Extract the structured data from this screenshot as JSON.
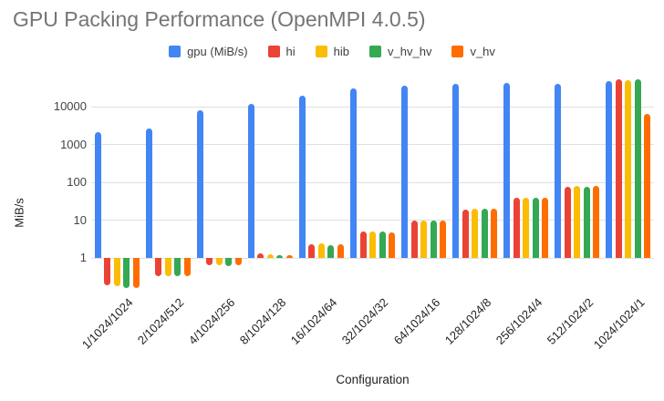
{
  "title": "GPU Packing Performance (OpenMPI 4.0.5)",
  "colors": {
    "title_text": "#757575",
    "axis_text": "#222222",
    "tick_text": "#444444",
    "gridline": "#e0e0e0"
  },
  "chart_data": {
    "type": "bar",
    "title": "GPU Packing Performance (OpenMPI 4.0.5)",
    "xlabel": "Configuration",
    "ylabel": "MiB/s",
    "y_scale": "log",
    "y_ticks": [
      1,
      10,
      100,
      1000,
      10000
    ],
    "ylim": [
      1,
      59000
    ],
    "baseline": 1,
    "grid": true,
    "legend_position": "top",
    "categories": [
      "1/1024/1024",
      "2/1024/512",
      "4/1024/256",
      "8/1024/128",
      "16/1024/64",
      "32/1024/32",
      "64/1024/16",
      "128/1024/8",
      "256/1024/4",
      "512/1024/2",
      "1024/1024/1"
    ],
    "series": [
      {
        "name": "gpu (MiB/s)",
        "color": "#4285F4",
        "values": [
          2100,
          2600,
          7800,
          11500,
          20000,
          30000,
          36000,
          40000,
          43000,
          40000,
          47000
        ]
      },
      {
        "name": "hi",
        "color": "#EA4335",
        "values": [
          0.19,
          0.33,
          0.65,
          1.3,
          2.3,
          5.0,
          9.5,
          19,
          38,
          75,
          52000
        ]
      },
      {
        "name": "hib",
        "color": "#FBBC04",
        "values": [
          0.18,
          0.33,
          0.65,
          1.25,
          2.4,
          5.0,
          10,
          20,
          40,
          78,
          50000
        ]
      },
      {
        "name": "v_hv_hv",
        "color": "#34A853",
        "values": [
          0.16,
          0.33,
          0.62,
          1.2,
          2.2,
          5.0,
          10,
          20,
          40,
          76,
          54000
        ]
      },
      {
        "name": "v_hv",
        "color": "#FF6D01",
        "values": [
          0.16,
          0.33,
          0.65,
          1.2,
          2.3,
          4.8,
          10,
          20,
          39,
          78,
          6500
        ]
      }
    ]
  }
}
